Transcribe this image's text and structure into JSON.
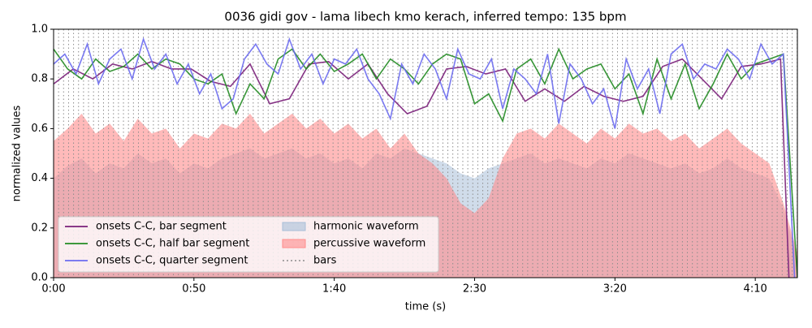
{
  "chart_data": {
    "type": "line",
    "title": "0036 gidi gov - lama libech kmo kerach, inferred tempo: 135 bpm",
    "xlabel": "time (s)",
    "ylabel": "normalized values",
    "xlim": [
      0,
      265
    ],
    "ylim": [
      0,
      1
    ],
    "xticks": [
      {
        "value": 0,
        "label": "0:00"
      },
      {
        "value": 50,
        "label": "0:50"
      },
      {
        "value": 100,
        "label": "1:40"
      },
      {
        "value": 150,
        "label": "2:30"
      },
      {
        "value": 200,
        "label": "3:20"
      },
      {
        "value": 250,
        "label": "4:10"
      }
    ],
    "yticks": [
      {
        "value": 0,
        "label": "0.0"
      },
      {
        "value": 0.2,
        "label": "0.2"
      },
      {
        "value": 0.4,
        "label": "0.4"
      },
      {
        "value": 0.6,
        "label": "0.6"
      },
      {
        "value": 0.8,
        "label": "0.8"
      },
      {
        "value": 1,
        "label": "1.0"
      }
    ],
    "legend": "lower left",
    "series": [
      {
        "name": "onsets C-C, bar segment",
        "type": "line",
        "color": "#7a1f7a",
        "x": [
          0,
          7,
          14,
          21,
          28,
          35,
          42,
          49,
          56,
          63,
          70,
          77,
          84,
          91,
          98,
          105,
          112,
          119,
          126,
          133,
          140,
          147,
          154,
          161,
          168,
          175,
          182,
          189,
          196,
          203,
          210,
          217,
          224,
          231,
          238,
          245,
          252,
          259,
          262
        ],
        "values": [
          0.78,
          0.84,
          0.8,
          0.86,
          0.84,
          0.87,
          0.84,
          0.84,
          0.79,
          0.77,
          0.86,
          0.7,
          0.72,
          0.86,
          0.87,
          0.8,
          0.86,
          0.74,
          0.66,
          0.69,
          0.84,
          0.85,
          0.82,
          0.84,
          0.71,
          0.76,
          0.71,
          0.77,
          0.73,
          0.71,
          0.73,
          0.85,
          0.88,
          0.8,
          0.72,
          0.85,
          0.86,
          0.88,
          0
        ]
      },
      {
        "name": "onsets C-C, half bar segment",
        "type": "line",
        "color": "#228b22",
        "x": [
          0,
          5,
          10,
          15,
          20,
          25,
          30,
          35,
          40,
          45,
          50,
          55,
          60,
          65,
          70,
          75,
          80,
          85,
          90,
          95,
          100,
          105,
          110,
          115,
          120,
          125,
          130,
          135,
          140,
          145,
          150,
          155,
          160,
          165,
          170,
          175,
          180,
          185,
          190,
          195,
          200,
          205,
          210,
          215,
          220,
          225,
          230,
          235,
          240,
          245,
          250,
          255,
          260,
          265
        ],
        "values": [
          0.92,
          0.84,
          0.8,
          0.88,
          0.83,
          0.85,
          0.9,
          0.84,
          0.88,
          0.86,
          0.8,
          0.78,
          0.82,
          0.66,
          0.78,
          0.72,
          0.88,
          0.92,
          0.84,
          0.9,
          0.83,
          0.86,
          0.9,
          0.8,
          0.88,
          0.84,
          0.78,
          0.86,
          0.9,
          0.88,
          0.7,
          0.74,
          0.63,
          0.84,
          0.88,
          0.78,
          0.92,
          0.8,
          0.84,
          0.86,
          0.76,
          0.82,
          0.66,
          0.88,
          0.72,
          0.86,
          0.68,
          0.78,
          0.9,
          0.8,
          0.86,
          0.88,
          0.9,
          0
        ]
      },
      {
        "name": "onsets C-C, quarter segment",
        "type": "line",
        "color": "#6b6bf0",
        "x": [
          0,
          4,
          8,
          12,
          16,
          20,
          24,
          28,
          32,
          36,
          40,
          44,
          48,
          52,
          56,
          60,
          64,
          68,
          72,
          76,
          80,
          84,
          88,
          92,
          96,
          100,
          104,
          108,
          112,
          116,
          120,
          124,
          128,
          132,
          136,
          140,
          144,
          148,
          152,
          156,
          160,
          164,
          168,
          172,
          176,
          180,
          184,
          188,
          192,
          196,
          200,
          204,
          208,
          212,
          216,
          220,
          224,
          228,
          232,
          236,
          240,
          244,
          248,
          252,
          256,
          260,
          264
        ],
        "values": [
          0.86,
          0.9,
          0.82,
          0.94,
          0.78,
          0.88,
          0.92,
          0.8,
          0.96,
          0.84,
          0.9,
          0.78,
          0.86,
          0.74,
          0.82,
          0.68,
          0.72,
          0.88,
          0.94,
          0.86,
          0.82,
          0.96,
          0.84,
          0.9,
          0.78,
          0.88,
          0.86,
          0.92,
          0.8,
          0.74,
          0.64,
          0.86,
          0.78,
          0.9,
          0.84,
          0.72,
          0.92,
          0.82,
          0.8,
          0.88,
          0.68,
          0.84,
          0.8,
          0.74,
          0.9,
          0.62,
          0.86,
          0.8,
          0.7,
          0.76,
          0.6,
          0.88,
          0.76,
          0.84,
          0.66,
          0.9,
          0.94,
          0.8,
          0.86,
          0.84,
          0.92,
          0.88,
          0.8,
          0.94,
          0.86,
          0.9,
          0
        ]
      },
      {
        "name": "harmonic waveform",
        "type": "area",
        "color": "#a9bfd8",
        "x": [
          0,
          5,
          10,
          15,
          20,
          25,
          30,
          35,
          40,
          45,
          50,
          55,
          60,
          65,
          70,
          75,
          80,
          85,
          90,
          95,
          100,
          105,
          110,
          115,
          120,
          125,
          130,
          135,
          140,
          145,
          150,
          155,
          160,
          165,
          170,
          175,
          180,
          185,
          190,
          195,
          200,
          205,
          210,
          215,
          220,
          225,
          230,
          235,
          240,
          245,
          250,
          255,
          260,
          265
        ],
        "values": [
          0.4,
          0.45,
          0.48,
          0.42,
          0.46,
          0.44,
          0.5,
          0.46,
          0.48,
          0.42,
          0.46,
          0.44,
          0.48,
          0.5,
          0.52,
          0.48,
          0.5,
          0.52,
          0.48,
          0.5,
          0.46,
          0.48,
          0.44,
          0.5,
          0.48,
          0.52,
          0.5,
          0.48,
          0.46,
          0.42,
          0.4,
          0.44,
          0.46,
          0.48,
          0.5,
          0.46,
          0.48,
          0.46,
          0.44,
          0.48,
          0.46,
          0.5,
          0.48,
          0.46,
          0.44,
          0.46,
          0.42,
          0.44,
          0.48,
          0.44,
          0.42,
          0.4,
          0.28,
          0.08
        ]
      },
      {
        "name": "percussive waveform",
        "type": "area",
        "color": "#ff8c8c",
        "x": [
          0,
          5,
          10,
          15,
          20,
          25,
          30,
          35,
          40,
          45,
          50,
          55,
          60,
          65,
          70,
          75,
          80,
          85,
          90,
          95,
          100,
          105,
          110,
          115,
          120,
          125,
          130,
          135,
          140,
          145,
          150,
          155,
          160,
          165,
          170,
          175,
          180,
          185,
          190,
          195,
          200,
          205,
          210,
          215,
          220,
          225,
          230,
          235,
          240,
          245,
          250,
          255,
          260,
          265
        ],
        "values": [
          0.55,
          0.6,
          0.66,
          0.58,
          0.62,
          0.55,
          0.64,
          0.58,
          0.6,
          0.52,
          0.58,
          0.56,
          0.62,
          0.6,
          0.66,
          0.58,
          0.62,
          0.66,
          0.6,
          0.64,
          0.58,
          0.62,
          0.56,
          0.6,
          0.52,
          0.58,
          0.5,
          0.46,
          0.4,
          0.3,
          0.26,
          0.32,
          0.48,
          0.58,
          0.6,
          0.56,
          0.62,
          0.58,
          0.54,
          0.6,
          0.56,
          0.62,
          0.58,
          0.6,
          0.55,
          0.58,
          0.52,
          0.56,
          0.6,
          0.54,
          0.5,
          0.46,
          0.3,
          0.1
        ]
      },
      {
        "name": "bars",
        "type": "vlines",
        "color": "#8c8c8c",
        "period": 1.778
      }
    ]
  }
}
